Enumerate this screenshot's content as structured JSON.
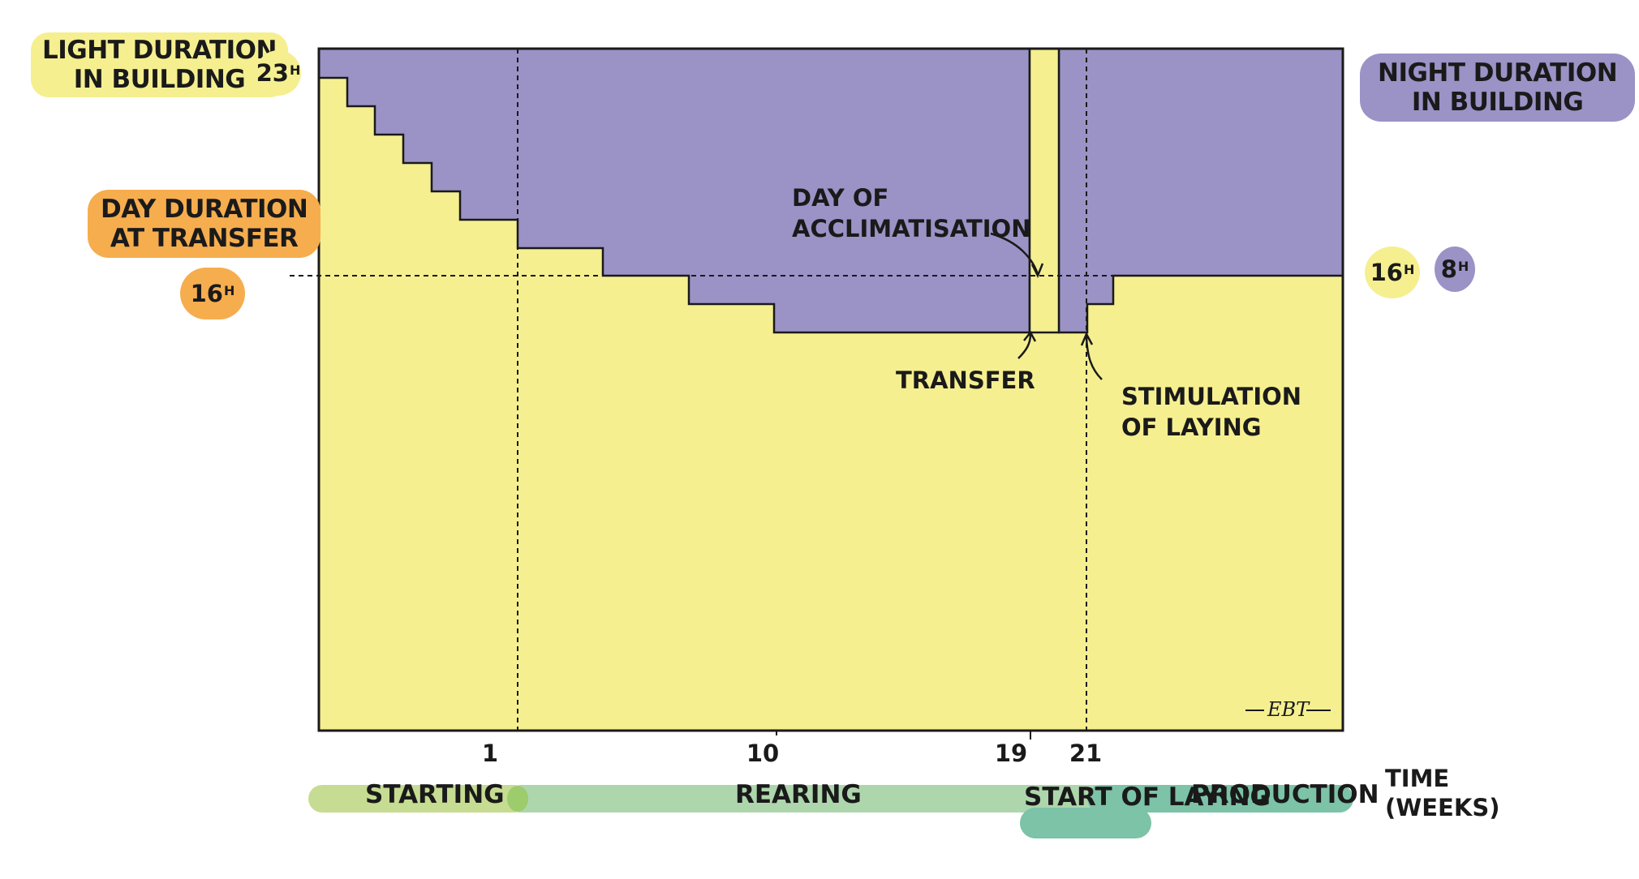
{
  "chart_data": {
    "type": "step-area",
    "title": "",
    "xlabel": "TIME (WEEKS)",
    "ylabel": "",
    "x_ticks": [
      "1",
      "10",
      "19",
      "21"
    ],
    "ylim": [
      0,
      24
    ],
    "day_duration_steps_hours": [
      {
        "period": "start",
        "hours": 23
      },
      {
        "period": "starting-step-1",
        "hours": 22
      },
      {
        "period": "starting-step-2",
        "hours": 21
      },
      {
        "period": "starting-step-3",
        "hours": 20
      },
      {
        "period": "starting-step-4",
        "hours": 19
      },
      {
        "period": "starting-step-5",
        "hours": 18
      },
      {
        "period": "week-1",
        "hours": 17
      },
      {
        "period": "rearing-1",
        "hours": 16
      },
      {
        "period": "rearing-2",
        "hours": 15
      },
      {
        "period": "rearing-3",
        "hours": 14
      },
      {
        "period": "day-of-acclimatisation",
        "hours": 24
      },
      {
        "period": "after-transfer",
        "hours": 14
      },
      {
        "period": "stimulation",
        "hours": 15
      },
      {
        "period": "production",
        "hours": 16
      }
    ],
    "series": [
      {
        "name": "LIGHT DURATION IN BUILDING",
        "color": "#f5ef90"
      },
      {
        "name": "NIGHT DURATION IN BUILDING",
        "color": "#9b92c6"
      }
    ],
    "reference_hours": 16
  },
  "labels": {
    "light_line1": "LIGHT DURATION",
    "light_line2": "IN BUILDING",
    "light_max": "23",
    "light_max_unit": "H",
    "night_line1": "NIGHT DURATION",
    "night_line2": "IN BUILDING",
    "transfer_line1": "DAY DURATION",
    "transfer_line2": "AT TRANSFER",
    "transfer_hours": "16",
    "transfer_unit": "H",
    "right_day": "16",
    "right_day_unit": "H",
    "right_night": "8",
    "right_night_unit": "H"
  },
  "annotations": {
    "acclim_line1": "DAY OF",
    "acclim_line2": "ACCLIMATISATION",
    "transfer": "TRANSFER",
    "stim_line1": "STIMULATION",
    "stim_line2": "OF LAYING"
  },
  "ticks": {
    "t1": "1",
    "t10": "10",
    "t19": "19",
    "t21": "21"
  },
  "axis": {
    "xlabel_line1": "TIME",
    "xlabel_line2": "(WEEKS)"
  },
  "phases": {
    "starting": "STARTING",
    "rearing": "REARING",
    "start_laying_line1": "START",
    "start_laying_line2": "OF LAYING",
    "production": "PRODUCTION"
  },
  "signature": "EBT",
  "colors": {
    "light": "#f5ef90",
    "night": "#9b92c6",
    "orange": "#f6ad4e",
    "phase_start": "#c6dc92",
    "phase_rearing": "#aed6ac",
    "phase_laying": "#7cc3a8"
  }
}
